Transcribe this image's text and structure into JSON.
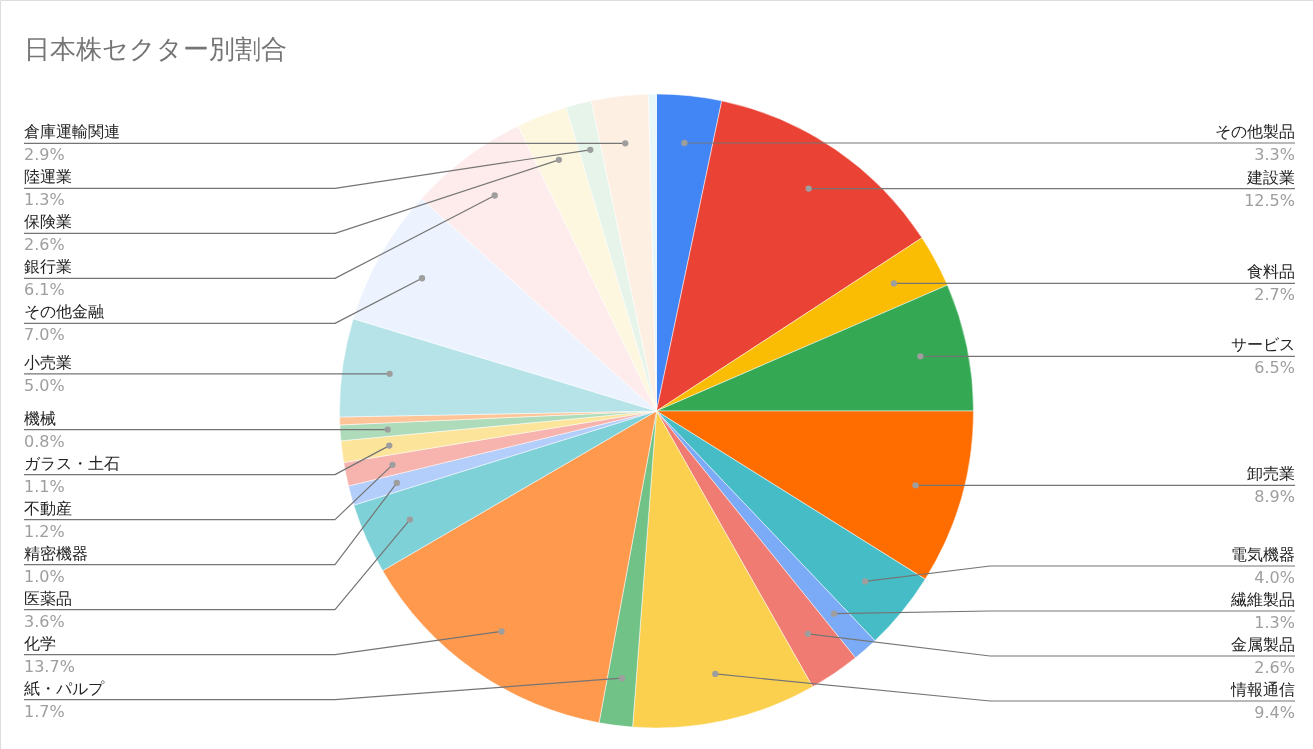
{
  "chart_data": {
    "type": "pie",
    "title": "日本株セクター別割合",
    "categories": [
      "その他製品",
      "建設業",
      "食料品",
      "サービス",
      "卸売業",
      "電気機器",
      "繊維製品",
      "金属製品",
      "情報通信",
      "紙・パルプ",
      "化学",
      "医薬品",
      "精密機器",
      "不動産",
      "ガラス・土石",
      "機械",
      null,
      "小売業",
      "その他金融",
      "銀行業",
      "保険業",
      "陸運業",
      "倉庫運輸関連",
      null
    ],
    "values": [
      3.3,
      12.5,
      2.7,
      6.5,
      8.9,
      4.0,
      1.3,
      2.6,
      9.4,
      1.7,
      13.7,
      3.6,
      1.0,
      1.2,
      1.1,
      0.8,
      0.4,
      5.0,
      7.0,
      6.1,
      2.6,
      1.3,
      2.9,
      0.4
    ],
    "value_labels": [
      "3.3%",
      "12.5%",
      "2.7%",
      "6.5%",
      "8.9%",
      "4.0%",
      "1.3%",
      "2.6%",
      "9.4%",
      "1.7%",
      "13.7%",
      "3.6%",
      "1.0%",
      "1.2%",
      "1.1%",
      "0.8%",
      null,
      "5.0%",
      "7.0%",
      "6.1%",
      "2.6%",
      "1.3%",
      "2.9%",
      null
    ],
    "colors": [
      "#4285f4",
      "#ea4335",
      "#fbbc04",
      "#34a853",
      "#ff6d01",
      "#46bdc6",
      "#7baaf7",
      "#f07b72",
      "#fcd04f",
      "#71c287",
      "#ff994d",
      "#7ed1d7",
      "#b3cefb",
      "#f7b4ae",
      "#fde49b",
      "#aedcba",
      "#ffc599",
      "#b5e3e8",
      "#ecf3fe",
      "#fdeceb",
      "#fef7e0",
      "#e6f4ea",
      "#feefe3",
      "#e8f7f8"
    ]
  }
}
